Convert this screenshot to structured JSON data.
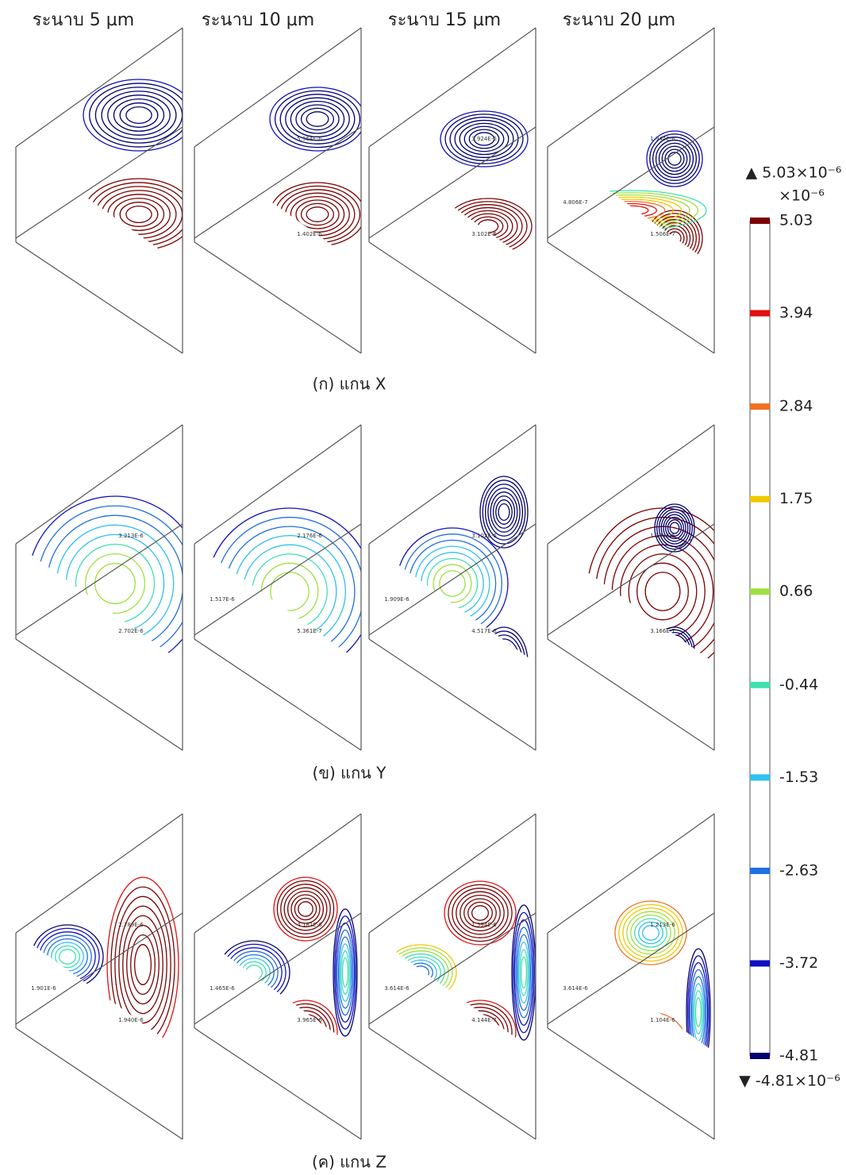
{
  "column_headers": [
    "ระนาบ 5 µm",
    "ระนาบ 10 µm",
    "ระนาบ 15 µm",
    "ระนาบ 20 µm"
  ],
  "rows": [
    {
      "caption": "(ก) แกน X",
      "panels": [
        {
          "labels": []
        },
        {
          "labels": [
            "5.964E-6",
            "1.402E-6"
          ]
        },
        {
          "labels": [
            "3.924E-6",
            "3.102E-6"
          ]
        },
        {
          "labels": [
            "1.944E-6",
            "1.506E-7",
            "4.806E-7"
          ]
        }
      ]
    },
    {
      "caption": "(ข) แกน Y",
      "panels": [
        {
          "labels": [
            "3.213E-6",
            "2.702E-6"
          ]
        },
        {
          "labels": [
            "2.176E-6",
            "5.361E-7",
            "1.517E-6"
          ]
        },
        {
          "labels": [
            "3.102E-6",
            "4.517E-6",
            "1.909E-6"
          ]
        },
        {
          "labels": [
            "1.144E-6",
            "3.166E-7"
          ]
        }
      ]
    },
    {
      "caption": "(ค) แกน Z",
      "panels": [
        {
          "labels": [
            "2.789E-6",
            "1.940E-6",
            "1.901E-6"
          ]
        },
        {
          "labels": [
            "4.181E-6",
            "3.965E-6",
            "1.465E-6"
          ]
        },
        {
          "labels": [
            "1.594E-6",
            "4.144E-7",
            "3.614E-6"
          ]
        },
        {
          "labels": [
            "1.213E-6",
            "1.104E-6",
            "3.614E-6"
          ]
        }
      ]
    }
  ],
  "colorbar": {
    "max_label": "▲ 5.03×10⁻⁶",
    "unit": "×10⁻⁶",
    "min_label": "▼ -4.81×10⁻⁶",
    "ticks": [
      {
        "value": 5.03,
        "color": "#7a0000"
      },
      {
        "value": 3.94,
        "color": "#e01010"
      },
      {
        "value": 2.84,
        "color": "#f07020"
      },
      {
        "value": 1.75,
        "color": "#f0c800"
      },
      {
        "value": 0.66,
        "color": "#a0e040"
      },
      {
        "value": -0.44,
        "color": "#40e0b0"
      },
      {
        "value": -1.53,
        "color": "#30c0f0"
      },
      {
        "value": -2.63,
        "color": "#2070e0"
      },
      {
        "value": -3.72,
        "color": "#1010c0"
      },
      {
        "value": -4.81,
        "color": "#000070"
      }
    ]
  }
}
